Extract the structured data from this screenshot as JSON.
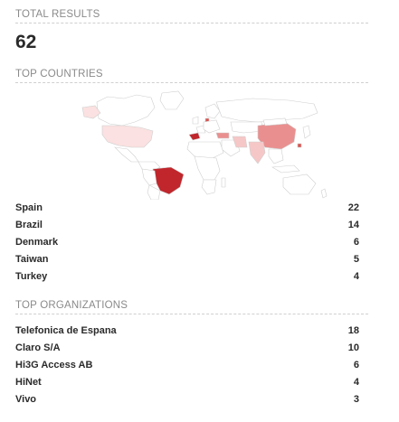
{
  "total": {
    "title": "TOTAL RESULTS",
    "value": "62"
  },
  "countries": {
    "title": "TOP COUNTRIES",
    "map_colors": {
      "base": "#ffffff",
      "border": "#cfcfcf",
      "highest": "#c0262c",
      "high": "#d9534f",
      "medium": "#ea8f8f",
      "low": "#f6c7c7",
      "lowest": "#fbe1e1"
    },
    "items": [
      {
        "label": "Spain",
        "value": "22"
      },
      {
        "label": "Brazil",
        "value": "14"
      },
      {
        "label": "Denmark",
        "value": "6"
      },
      {
        "label": "Taiwan",
        "value": "5"
      },
      {
        "label": "Turkey",
        "value": "4"
      }
    ]
  },
  "organizations": {
    "title": "TOP ORGANIZATIONS",
    "items": [
      {
        "label": "Telefonica de Espana",
        "value": "18"
      },
      {
        "label": "Claro S/A",
        "value": "10"
      },
      {
        "label": "Hi3G Access AB",
        "value": "6"
      },
      {
        "label": "HiNet",
        "value": "4"
      },
      {
        "label": "Vivo",
        "value": "3"
      }
    ]
  }
}
